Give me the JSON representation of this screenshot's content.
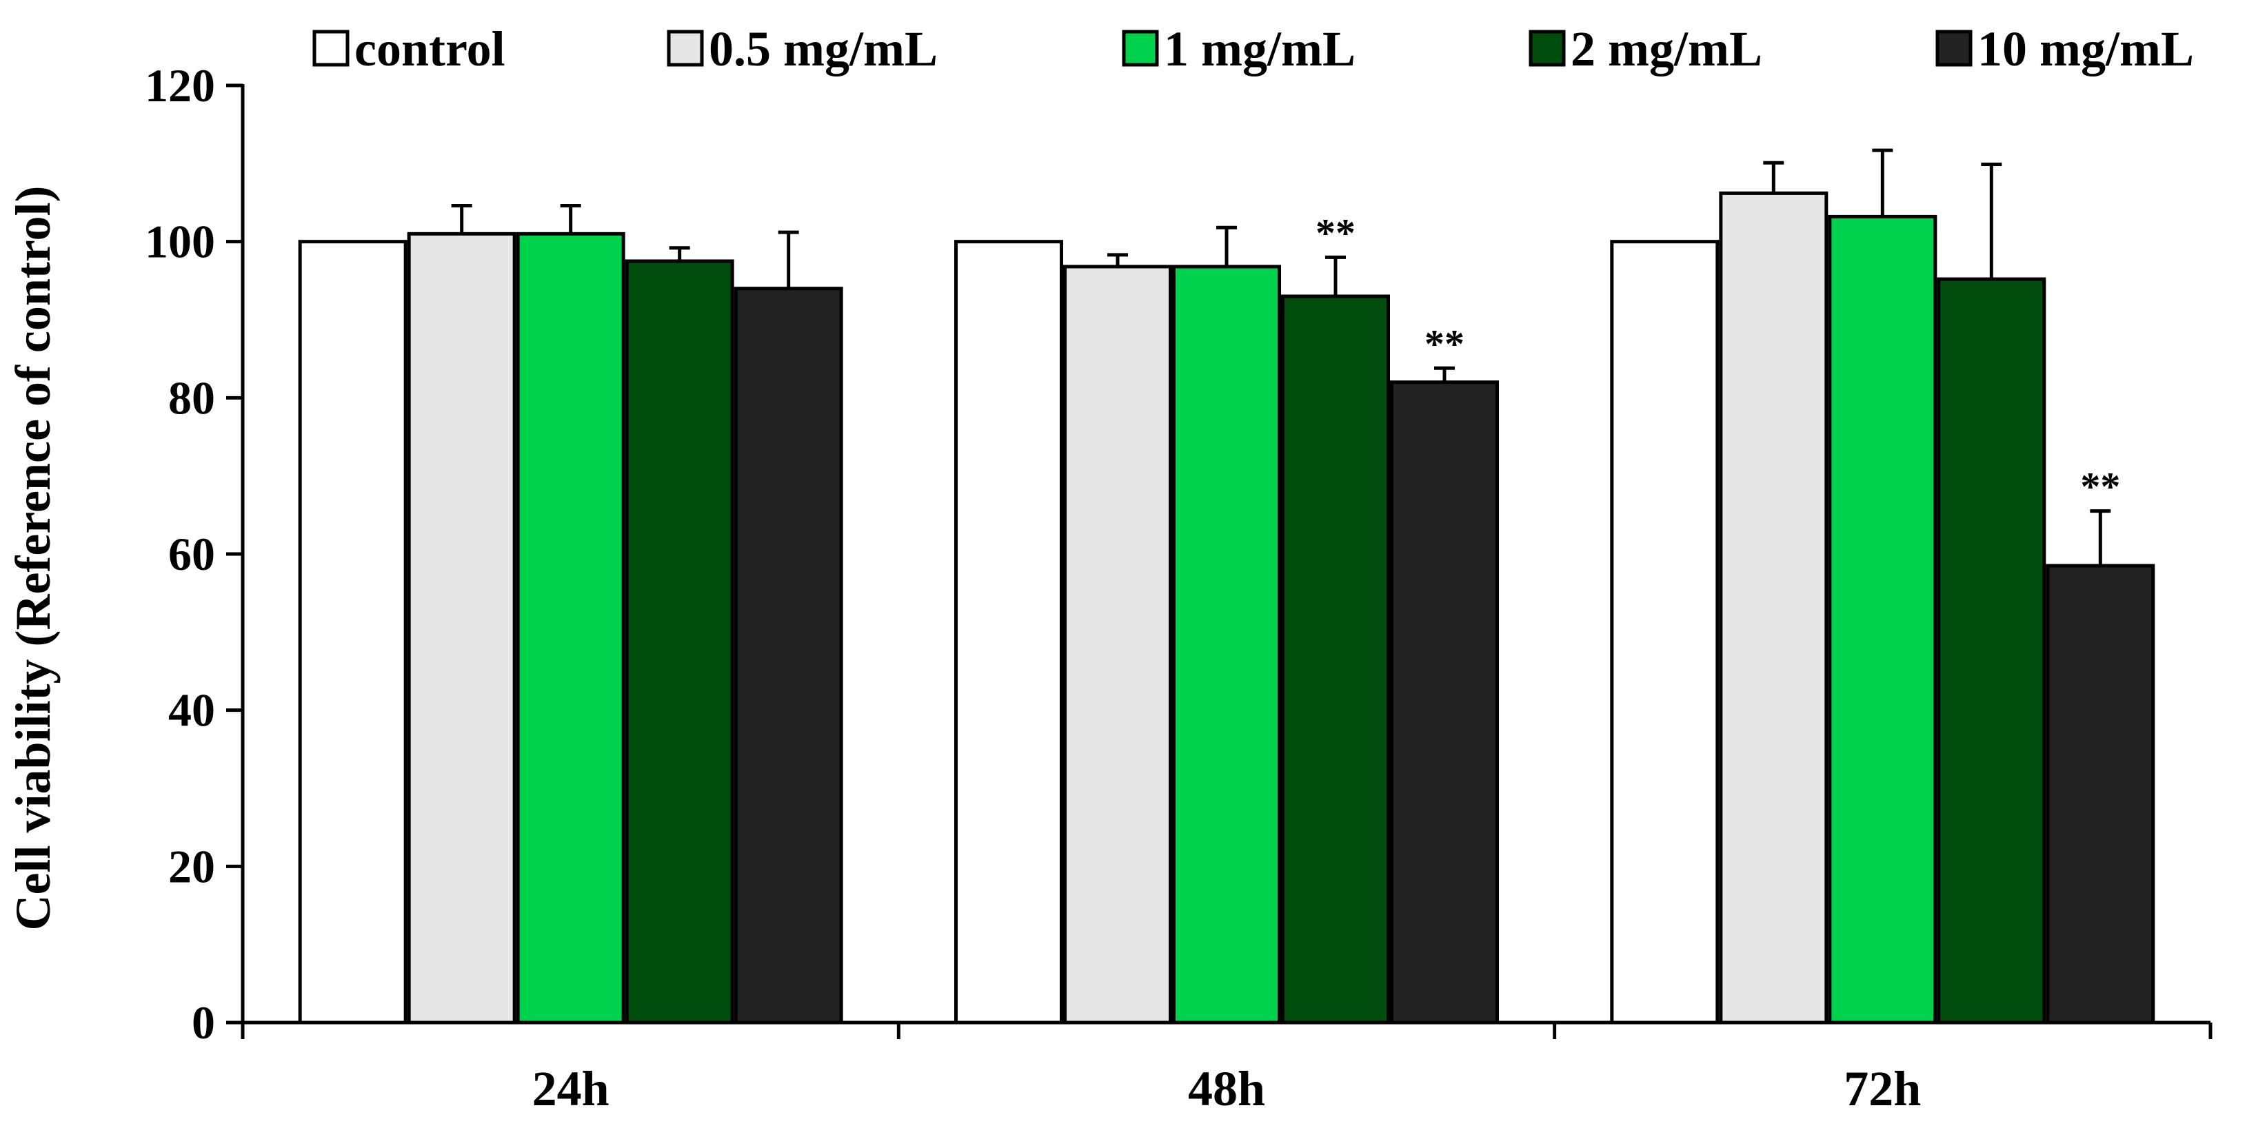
{
  "chart_data": {
    "type": "bar",
    "title": "",
    "xlabel": "",
    "ylabel": "Cell viability  (Reference of control)",
    "ylim": [
      0,
      120
    ],
    "yticks": [
      0,
      20,
      40,
      60,
      80,
      100,
      120
    ],
    "grid": false,
    "legend_position": "top",
    "categories": [
      "24h",
      "48h",
      "72h"
    ],
    "series": [
      {
        "name": "control",
        "color": "#ffffff",
        "values": [
          100,
          100,
          100
        ],
        "errors": [
          0,
          0,
          0
        ],
        "significance": [
          "",
          "",
          ""
        ]
      },
      {
        "name": "0.5 mg/mL",
        "color": "#e6e6e6",
        "values": [
          101,
          96.8,
          106.2
        ],
        "errors": [
          3.6,
          1.5,
          3.9
        ],
        "significance": [
          "",
          "",
          ""
        ]
      },
      {
        "name": "1 mg/mL",
        "color": "#00d24e",
        "values": [
          101,
          96.8,
          103.2
        ],
        "errors": [
          3.6,
          5.0,
          8.5
        ],
        "significance": [
          "",
          "",
          ""
        ]
      },
      {
        "name": "2 mg/mL",
        "color": "#004d0e",
        "values": [
          97.5,
          93,
          95.2
        ],
        "errors": [
          1.7,
          5.0,
          14.7
        ],
        "significance": [
          "",
          "**",
          ""
        ]
      },
      {
        "name": "10 mg/mL",
        "color": "#222222",
        "values": [
          94,
          82,
          58.5
        ],
        "errors": [
          7.2,
          1.8,
          7.0
        ],
        "significance": [
          "",
          "**",
          "**"
        ]
      }
    ]
  }
}
